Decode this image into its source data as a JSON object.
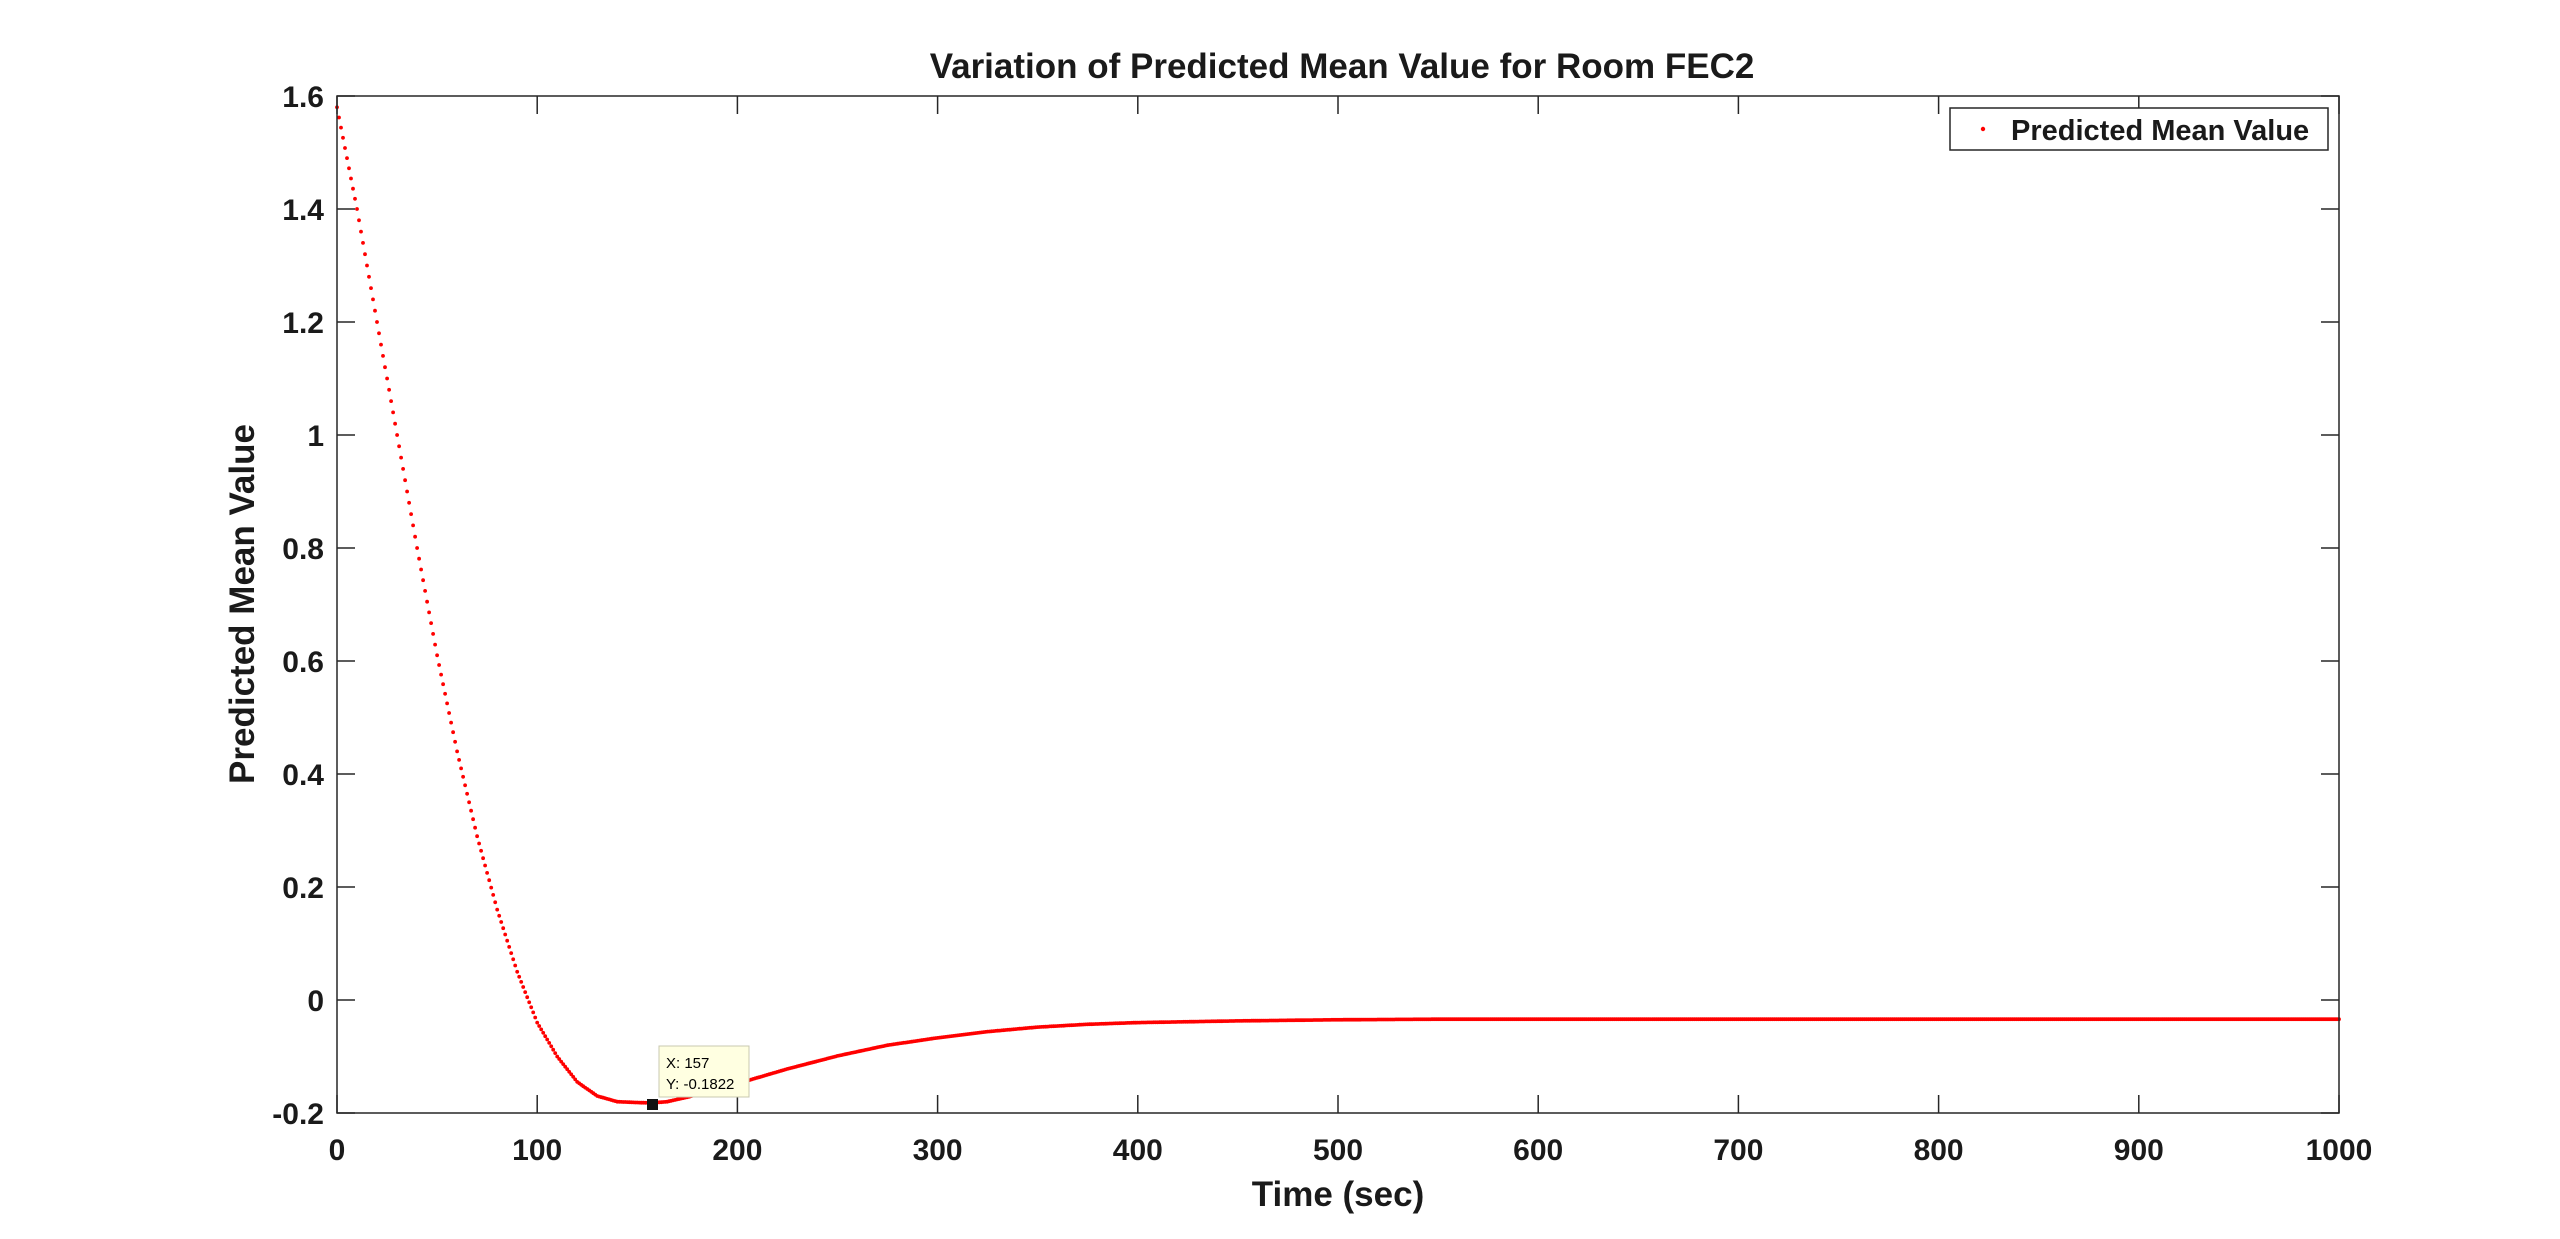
{
  "chart_data": {
    "type": "scatter",
    "title": "Variation of Predicted Mean Value for Room FEC2",
    "xlabel": "Time (sec)",
    "ylabel": "Predicted Mean Value",
    "xlim": [
      0,
      1000
    ],
    "ylim": [
      -0.2,
      1.6
    ],
    "xticks": [
      0,
      100,
      200,
      300,
      400,
      500,
      600,
      700,
      800,
      900,
      1000
    ],
    "xtick_labels": [
      "0",
      "100",
      "200",
      "300",
      "400",
      "500",
      "600",
      "700",
      "800",
      "900",
      "1000"
    ],
    "yticks": [
      -0.2,
      0,
      0.2,
      0.4,
      0.6,
      0.8,
      1,
      1.2,
      1.4,
      1.6
    ],
    "ytick_labels": [
      "-0.2",
      "0",
      "0.2",
      "0.4",
      "0.6",
      "0.8",
      "1",
      "1.2",
      "1.4",
      "1.6"
    ],
    "grid": false,
    "legend_position": "top-right",
    "series": [
      {
        "name": "Predicted Mean Value",
        "color": "#ff0000",
        "marker": "dot",
        "x": [
          0,
          10,
          20,
          30,
          40,
          50,
          60,
          70,
          80,
          90,
          100,
          110,
          120,
          130,
          140,
          150,
          157,
          165,
          175,
          190,
          200,
          225,
          250,
          275,
          300,
          325,
          350,
          375,
          400,
          450,
          500,
          550,
          600,
          650,
          700,
          750,
          800,
          850,
          900,
          950,
          1000
        ],
        "y": [
          1.58,
          1.4,
          1.2,
          1.0,
          0.8,
          0.61,
          0.44,
          0.29,
          0.16,
          0.05,
          -0.04,
          -0.1,
          -0.145,
          -0.17,
          -0.18,
          -0.1815,
          -0.1822,
          -0.18,
          -0.172,
          -0.158,
          -0.148,
          -0.122,
          -0.099,
          -0.08,
          -0.067,
          -0.056,
          -0.048,
          -0.043,
          -0.04,
          -0.037,
          -0.035,
          -0.034,
          -0.034,
          -0.034,
          -0.034,
          -0.034,
          -0.034,
          -0.034,
          -0.034,
          -0.034,
          -0.034
        ]
      }
    ],
    "datatip": {
      "x": 157,
      "y": -0.1822,
      "x_label": "X: 157",
      "y_label": "Y: -0.1822"
    }
  }
}
